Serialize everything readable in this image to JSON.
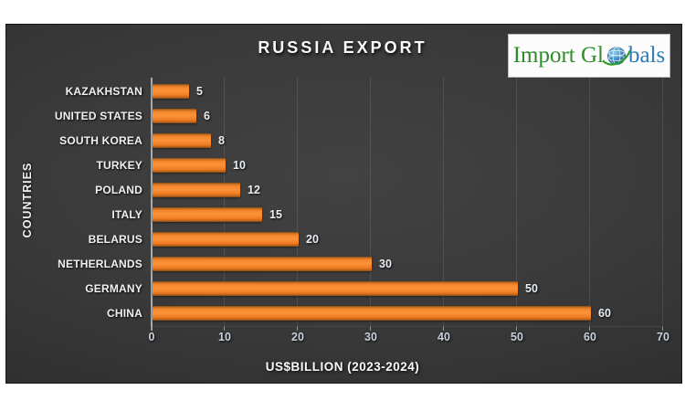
{
  "header": {
    "title": "RUSSIA EXPORT"
  },
  "logo": {
    "name": "Import Globals",
    "text_before_globe": "Import Gl",
    "text_after_globe": "bals",
    "globe_icon": "globe-icon",
    "color_green": "#2E8B2A",
    "color_blue": "#2D7CB5"
  },
  "chart_data": {
    "type": "bar",
    "orientation": "horizontal",
    "title": "RUSSIA EXPORT",
    "categories": [
      "KAZAKHSTAN",
      "UNITED STATES",
      "SOUTH KOREA",
      "TURKEY",
      "POLAND",
      "ITALY",
      "BELARUS",
      "NETHERLANDS",
      "GERMANY",
      "CHINA"
    ],
    "values": [
      5,
      6,
      8,
      10,
      12,
      15,
      20,
      30,
      50,
      60
    ],
    "xlabel": "US$BILLION (2023-2024)",
    "ylabel": "COUNTRIES",
    "xlim": [
      0,
      70
    ],
    "xticks": [
      "0",
      "10",
      "20",
      "30",
      "40",
      "50",
      "60",
      "70"
    ],
    "bar_color": "#F08122",
    "background_color": "#3A3A3A",
    "grid": true,
    "legend": false,
    "value_labels": true
  }
}
